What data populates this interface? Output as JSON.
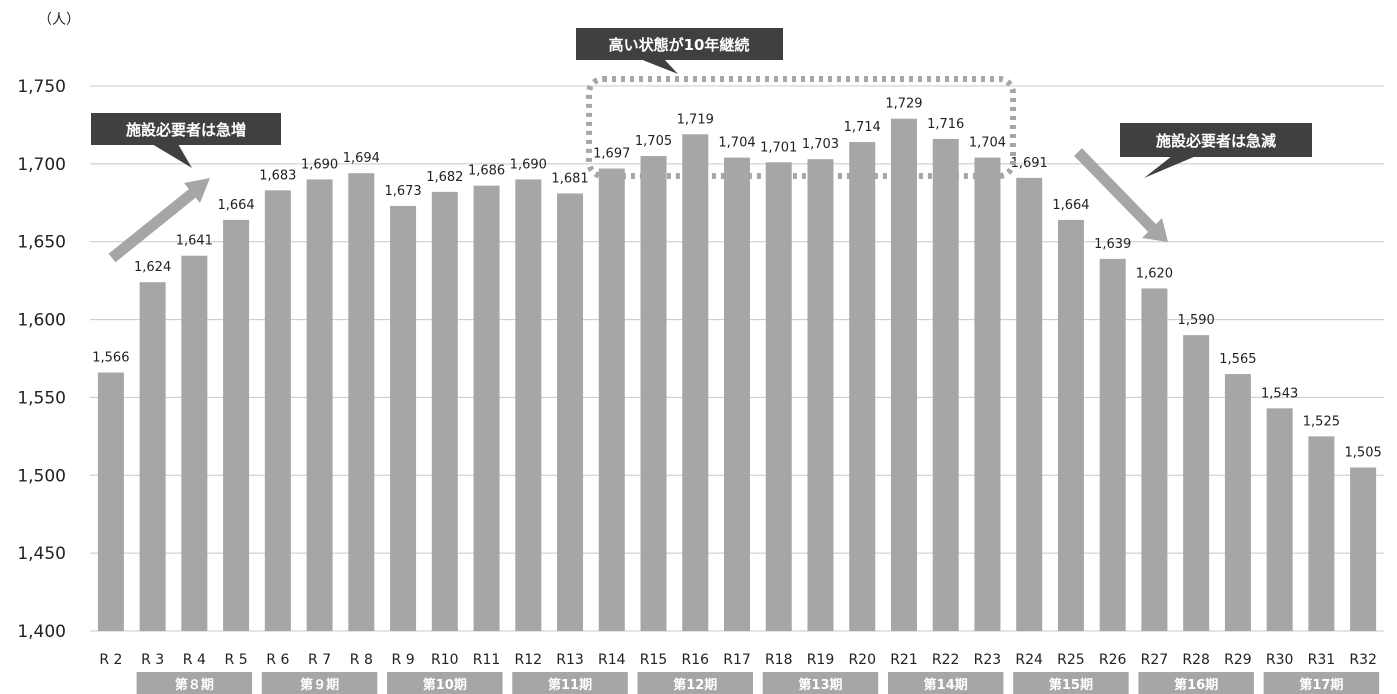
{
  "chart_data": {
    "type": "bar",
    "unit_label": "（人）",
    "categories": [
      "R 2",
      "R 3",
      "R 4",
      "R 5",
      "R 6",
      "R 7",
      "R 8",
      "R 9",
      "R10",
      "R11",
      "R12",
      "R13",
      "R14",
      "R15",
      "R16",
      "R17",
      "R18",
      "R19",
      "R20",
      "R21",
      "R22",
      "R23",
      "R24",
      "R25",
      "R26",
      "R27",
      "R28",
      "R29",
      "R30",
      "R31",
      "R32"
    ],
    "values": [
      1566,
      1624,
      1641,
      1664,
      1683,
      1690,
      1694,
      1673,
      1682,
      1686,
      1690,
      1681,
      1697,
      1705,
      1719,
      1704,
      1701,
      1703,
      1714,
      1729,
      1716,
      1704,
      1691,
      1664,
      1639,
      1620,
      1590,
      1565,
      1543,
      1525,
      1505
    ],
    "value_labels": [
      "1,566",
      "1,624",
      "1,641",
      "1,664",
      "1,683",
      "1,690",
      "1,694",
      "1,673",
      "1,682",
      "1,686",
      "1,690",
      "1,681",
      "1,697",
      "1,705",
      "1,719",
      "1,704",
      "1,701",
      "1,703",
      "1,714",
      "1,729",
      "1,716",
      "1,704",
      "1,691",
      "1,664",
      "1,639",
      "1,620",
      "1,590",
      "1,565",
      "1,543",
      "1,525",
      "1,505"
    ],
    "ylim": [
      1400,
      1750
    ],
    "yticks": [
      1400,
      1450,
      1500,
      1550,
      1600,
      1650,
      1700,
      1750
    ],
    "ytick_labels": [
      "1,400",
      "1,450",
      "1,500",
      "1,550",
      "1,600",
      "1,650",
      "1,700",
      "1,750"
    ],
    "grid": true,
    "bar_color": "#a6a6a6",
    "grid_color": "#c8c8c8",
    "periods": [
      {
        "label": "第８期",
        "start": 1,
        "end": 3
      },
      {
        "label": "第９期",
        "start": 4,
        "end": 6
      },
      {
        "label": "第10期",
        "start": 7,
        "end": 9
      },
      {
        "label": "第11期",
        "start": 10,
        "end": 12
      },
      {
        "label": "第12期",
        "start": 13,
        "end": 15
      },
      {
        "label": "第13期",
        "start": 16,
        "end": 18
      },
      {
        "label": "第14期",
        "start": 19,
        "end": 21
      },
      {
        "label": "第15期",
        "start": 22,
        "end": 24
      },
      {
        "label": "第16期",
        "start": 25,
        "end": 27
      },
      {
        "label": "第17期",
        "start": 28,
        "end": 30
      }
    ],
    "period_color": "#a6a6a6",
    "annotations": {
      "increase": "施設必要者は急増",
      "plateau": "高い状態が10年継続",
      "decrease": "施設必要者は急減"
    },
    "callout_color": "#404040",
    "arrow_color": "#a6a6a6",
    "highlight_color": "#a6a6a6"
  }
}
